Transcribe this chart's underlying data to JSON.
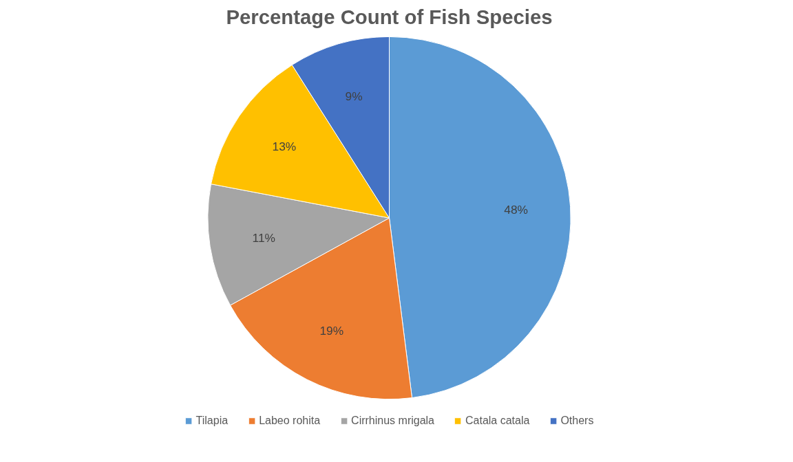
{
  "chart_data": {
    "type": "pie",
    "title": "Percentage Count of Fish Species",
    "categories": [
      "Tilapia",
      "Labeo rohita",
      "Cirrhinus mrigala",
      "Catala catala",
      "Others"
    ],
    "values": [
      48,
      19,
      11,
      13,
      9
    ],
    "colors": [
      "#5b9bd5",
      "#ed7d31",
      "#a5a5a5",
      "#ffc000",
      "#4472c4"
    ],
    "value_labels": [
      "48%",
      "19%",
      "11%",
      "13%",
      "9%"
    ],
    "legend": "bottom"
  }
}
